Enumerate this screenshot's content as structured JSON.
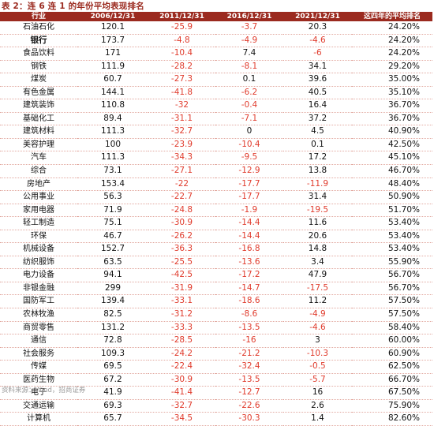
{
  "title": "表 2：连 6 连 1 的年份平均表现排名",
  "source": "资料来源：Wind，招商证券",
  "table": {
    "headers": [
      "行业",
      "2006/12/31",
      "2011/12/31",
      "2016/12/31",
      "2021/12/31",
      "这四年的平均排名"
    ],
    "rows": [
      [
        "石油石化",
        "120.1",
        "-25.9",
        "-3.7",
        "20.3",
        "24.20%"
      ],
      [
        "银行",
        "173.7",
        "-4.8",
        "-4.9",
        "-4.6",
        "24.20%"
      ],
      [
        "食品饮料",
        "171",
        "-10.4",
        "7.4",
        "-6",
        "24.20%"
      ],
      [
        "钢铁",
        "111.9",
        "-28.2",
        "-8.1",
        "34.1",
        "29.20%"
      ],
      [
        "煤炭",
        "60.7",
        "-27.3",
        "0.1",
        "39.6",
        "35.00%"
      ],
      [
        "有色金属",
        "144.1",
        "-41.8",
        "-6.2",
        "40.5",
        "35.10%"
      ],
      [
        "建筑装饰",
        "110.8",
        "-32",
        "-0.4",
        "16.4",
        "36.70%"
      ],
      [
        "基础化工",
        "89.4",
        "-31.1",
        "-7.1",
        "37.2",
        "36.70%"
      ],
      [
        "建筑材料",
        "111.3",
        "-32.7",
        "0",
        "4.5",
        "40.90%"
      ],
      [
        "美容护理",
        "100",
        "-23.9",
        "-10.4",
        "0.1",
        "42.50%"
      ],
      [
        "汽车",
        "111.3",
        "-34.3",
        "-9.5",
        "17.2",
        "45.10%"
      ],
      [
        "综合",
        "73.1",
        "-27.1",
        "-12.9",
        "13.8",
        "46.70%"
      ],
      [
        "房地产",
        "153.4",
        "-22",
        "-17.7",
        "-11.9",
        "48.40%"
      ],
      [
        "公用事业",
        "56.3",
        "-22.7",
        "-17.7",
        "31.4",
        "50.90%"
      ],
      [
        "家用电器",
        "71.9",
        "-24.8",
        "-1.9",
        "-19.5",
        "51.70%"
      ],
      [
        "轻工制造",
        "75.1",
        "-30.9",
        "-14.4",
        "11.6",
        "53.40%"
      ],
      [
        "环保",
        "46.7",
        "-26.2",
        "-14.4",
        "20.6",
        "53.40%"
      ],
      [
        "机械设备",
        "152.7",
        "-36.3",
        "-16.8",
        "14.8",
        "53.40%"
      ],
      [
        "纺织服饰",
        "63.5",
        "-25.5",
        "-13.6",
        "3.4",
        "55.90%"
      ],
      [
        "电力设备",
        "94.1",
        "-42.5",
        "-17.2",
        "47.9",
        "56.70%"
      ],
      [
        "非银金融",
        "299",
        "-31.9",
        "-14.7",
        "-17.5",
        "56.70%"
      ],
      [
        "国防军工",
        "139.4",
        "-33.1",
        "-18.6",
        "11.2",
        "57.50%"
      ],
      [
        "农林牧渔",
        "82.5",
        "-31.2",
        "-8.6",
        "-4.9",
        "57.50%"
      ],
      [
        "商贸零售",
        "131.2",
        "-33.3",
        "-13.5",
        "-4.6",
        "58.40%"
      ],
      [
        "通信",
        "72.8",
        "-28.5",
        "-16",
        "3",
        "60.00%"
      ],
      [
        "社会服务",
        "109.3",
        "-24.2",
        "-21.2",
        "-10.3",
        "60.90%"
      ],
      [
        "传媒",
        "69.5",
        "-22.4",
        "-32.4",
        "-0.5",
        "62.50%"
      ],
      [
        "医药生物",
        "67.2",
        "-30.9",
        "-13.5",
        "-5.7",
        "66.70%"
      ],
      [
        "电子",
        "41.9",
        "-41.4",
        "-12.7",
        "16",
        "67.50%"
      ],
      [
        "交通运输",
        "69.3",
        "-32.7",
        "-22.6",
        "2.6",
        "75.90%"
      ],
      [
        "计算机",
        "65.7",
        "-34.5",
        "-30.3",
        "1.4",
        "82.60%"
      ]
    ]
  },
  "colors": {
    "header_bg": "#9b2a1f",
    "header_text": "#ffffff",
    "negative": "#e03b2c",
    "positive": "#111111",
    "title": "#9b2a1f"
  },
  "highlighted_row": "银行"
}
